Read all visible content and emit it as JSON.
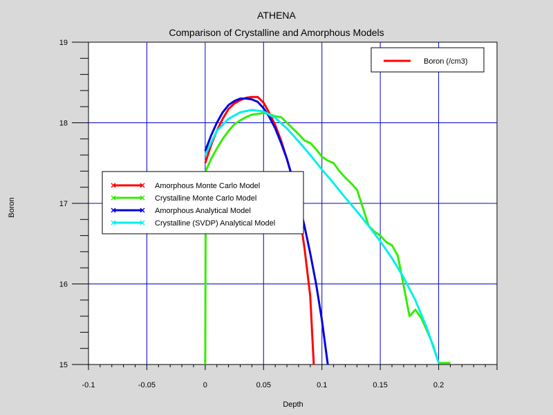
{
  "chart_data": {
    "type": "line",
    "title": "ATHENA",
    "subtitle": "Comparison of Crystalline and Amorphous Models",
    "xlabel": "Depth",
    "ylabel": "Boron",
    "xlim": [
      -0.1,
      0.25
    ],
    "ylim": [
      15,
      19
    ],
    "x_ticks": [
      -0.1,
      -0.05,
      0,
      0.05,
      0.1,
      0.15,
      0.2
    ],
    "x_tick_labels": [
      "-0.1",
      "-0.05",
      "0",
      "0.05",
      "0.1",
      "0.15",
      "0.2"
    ],
    "y_ticks": [
      15,
      16,
      17,
      18,
      19
    ],
    "y_tick_labels": [
      "15",
      "16",
      "17",
      "18",
      "19"
    ],
    "grid": true,
    "legend_top_right": {
      "label": "Boron (/cm3)",
      "color": "#ff0000"
    },
    "legend_placement": "center-left",
    "series": [
      {
        "name": "Amorphous Monte Carlo Model",
        "color": "#ff0000",
        "x": [
          0,
          0.005,
          0.01,
          0.015,
          0.02,
          0.025,
          0.03,
          0.035,
          0.04,
          0.045,
          0.05,
          0.055,
          0.06,
          0.065,
          0.07,
          0.075,
          0.08,
          0.085,
          0.09,
          0.093
        ],
        "y": [
          17.5,
          17.72,
          17.9,
          18.05,
          18.17,
          18.24,
          18.28,
          18.31,
          18.32,
          18.32,
          18.25,
          18.12,
          17.97,
          17.78,
          17.55,
          17.3,
          16.95,
          16.45,
          15.85,
          15
        ]
      },
      {
        "name": "Crystalline Monte Carlo Model",
        "color": "#33ee00",
        "x": [
          0,
          0.0005,
          0.005,
          0.01,
          0.015,
          0.02,
          0.025,
          0.03,
          0.035,
          0.04,
          0.045,
          0.05,
          0.055,
          0.06,
          0.065,
          0.07,
          0.075,
          0.08,
          0.085,
          0.09,
          0.095,
          0.1,
          0.105,
          0.11,
          0.115,
          0.12,
          0.125,
          0.13,
          0.135,
          0.14,
          0.145,
          0.15,
          0.155,
          0.16,
          0.165,
          0.17,
          0.175,
          0.18,
          0.185,
          0.19,
          0.195,
          0.2,
          0.205,
          0.21
        ],
        "y": [
          15,
          17.4,
          17.55,
          17.68,
          17.8,
          17.9,
          17.98,
          18.03,
          18.07,
          18.1,
          18.11,
          18.12,
          18.11,
          18.08,
          18.07,
          18.0,
          17.93,
          17.86,
          17.78,
          17.75,
          17.67,
          17.58,
          17.53,
          17.5,
          17.4,
          17.32,
          17.25,
          17.17,
          16.95,
          16.72,
          16.65,
          16.6,
          16.52,
          16.48,
          16.35,
          15.98,
          15.6,
          15.68,
          15.58,
          15.42,
          15.25,
          15.02,
          15.02,
          15.02
        ]
      },
      {
        "name": "Amorphous Analytical Model",
        "color": "#0000dd",
        "x": [
          0,
          0.005,
          0.01,
          0.015,
          0.02,
          0.025,
          0.03,
          0.035,
          0.04,
          0.045,
          0.05,
          0.055,
          0.06,
          0.065,
          0.07,
          0.075,
          0.08,
          0.085,
          0.09,
          0.095,
          0.1,
          0.105
        ],
        "y": [
          17.65,
          17.84,
          18.0,
          18.13,
          18.22,
          18.27,
          18.3,
          18.3,
          18.29,
          18.26,
          18.18,
          18.07,
          17.93,
          17.75,
          17.55,
          17.3,
          17.03,
          16.72,
          16.38,
          16.0,
          15.55,
          15
        ]
      },
      {
        "name": "Crystalline (SVDP) Analytical Model",
        "color": "#00eeee",
        "x": [
          0,
          0.01,
          0.02,
          0.03,
          0.04,
          0.05,
          0.06,
          0.07,
          0.08,
          0.09,
          0.1,
          0.11,
          0.12,
          0.13,
          0.14,
          0.15,
          0.16,
          0.17,
          0.18,
          0.19,
          0.2
        ],
        "y": [
          17.6,
          17.9,
          18.05,
          18.13,
          18.16,
          18.14,
          18.06,
          17.93,
          17.77,
          17.6,
          17.42,
          17.25,
          17.07,
          16.9,
          16.72,
          16.53,
          16.32,
          16.08,
          15.8,
          15.45,
          15.02
        ]
      }
    ]
  }
}
